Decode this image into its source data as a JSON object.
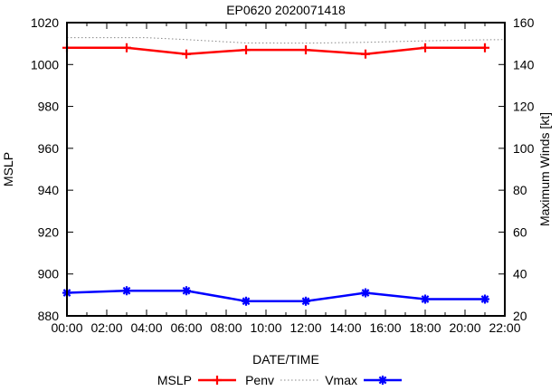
{
  "window": {
    "title": "EP0620 2020071418"
  },
  "chart_data": {
    "type": "line",
    "title": "EP0620 2020071418",
    "xlabel": "DATE/TIME",
    "grid": false,
    "legend_position": "bottom-center",
    "left_axis": {
      "label": "MSLP",
      "lim": [
        880,
        1020
      ],
      "ticks": [
        880,
        900,
        920,
        940,
        960,
        980,
        1000,
        1020
      ]
    },
    "right_axis": {
      "label": "Maximum Winds [kt]",
      "lim": [
        20,
        160
      ],
      "ticks": [
        20,
        40,
        60,
        80,
        100,
        120,
        140,
        160
      ]
    },
    "x_axis": {
      "label": "DATE/TIME",
      "lim_hours": [
        0,
        22
      ],
      "major_tick_hours": [
        0,
        2,
        4,
        6,
        8,
        10,
        12,
        14,
        16,
        18,
        20,
        22
      ],
      "major_tick_labels": [
        "00:00",
        "02:00",
        "04:00",
        "06:00",
        "08:00",
        "10:00",
        "12:00",
        "14:00",
        "16:00",
        "18:00",
        "20:00",
        "22:00"
      ],
      "minor_tick_hours": [
        1,
        3,
        5,
        7,
        9,
        11,
        13,
        15,
        17,
        19,
        21
      ]
    },
    "series": [
      {
        "name": "MSLP",
        "axis": "left",
        "color": "#ff0000",
        "line": "solid",
        "marker": "plus",
        "x_hours": [
          0,
          3,
          6,
          9,
          12,
          15,
          18,
          21
        ],
        "values": [
          1008,
          1008,
          1005,
          1007,
          1007,
          1005,
          1008,
          1008
        ]
      },
      {
        "name": "Penv",
        "axis": "left",
        "color": "#888888",
        "line": "dotted",
        "marker": "none",
        "x_hours": [
          0,
          4,
          6,
          9,
          12,
          15,
          18,
          21,
          22
        ],
        "values": [
          1012.8,
          1012.8,
          1011.9,
          1010.3,
          1010.2,
          1010.6,
          1011.3,
          1011.8,
          1011.9
        ]
      },
      {
        "name": "Vmax",
        "axis": "right",
        "color": "#0000ff",
        "line": "solid",
        "marker": "asterisk",
        "x_hours": [
          0,
          3,
          6,
          9,
          12,
          15,
          18,
          21
        ],
        "values": [
          31,
          32,
          32,
          27,
          27,
          31,
          28,
          28
        ]
      }
    ]
  }
}
